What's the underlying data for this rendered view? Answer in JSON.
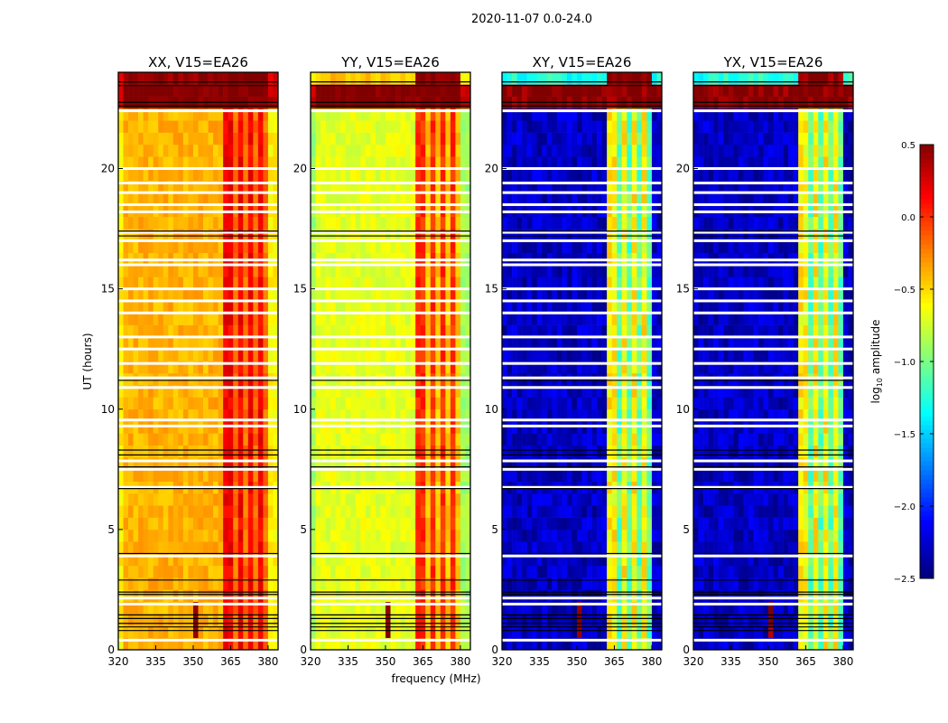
{
  "chart_data": {
    "type": "heatmap",
    "suptitle": "2020-11-07 0.0-24.0",
    "xlabel": "frequency (MHz)",
    "ylabel": "UT (hours)",
    "xlim": [
      320,
      384
    ],
    "ylim": [
      0,
      24
    ],
    "xticks": [
      "320",
      "335",
      "350",
      "365",
      "380"
    ],
    "xtick_values": [
      320,
      335,
      350,
      365,
      380
    ],
    "yticks": [
      "0",
      "5",
      "10",
      "15",
      "20"
    ],
    "ytick_values": [
      0,
      5,
      10,
      15,
      20
    ],
    "colorbar": {
      "label": "log10 amplitude",
      "label_main": "log",
      "label_sub": "10",
      "label_rest": " amplitude",
      "colormap": "jet",
      "range": [
        -2.5,
        0.5
      ],
      "ticks": [
        "0.5",
        "0.0",
        "−0.5",
        "−1.0",
        "−1.5",
        "−2.0",
        "−2.5"
      ],
      "tick_values": [
        0.5,
        0.0,
        -0.5,
        -1.0,
        -1.5,
        -2.0,
        -2.5
      ]
    },
    "rfi_stripes_mhz": [
      [
        362,
        366
      ],
      [
        368,
        370
      ],
      [
        372,
        374
      ],
      [
        376,
        378
      ]
    ],
    "rfi_band_mhz": [
      362,
      380
    ],
    "top_band_hours": [
      22.6,
      24
    ],
    "spike": {
      "freq_mhz": 351,
      "hours": [
        0.6,
        1.9
      ],
      "value": 0.5
    },
    "flagged_hours": [
      0.4,
      1.9,
      2.15,
      3.9,
      6.75,
      7.5,
      7.85,
      9.3,
      9.55,
      10.9,
      11.3,
      11.9,
      12.5,
      13.0,
      14.0,
      14.5,
      15.0,
      16.0,
      16.2,
      17.0,
      17.35,
      18.2,
      18.5,
      19.0,
      19.4,
      20.0,
      22.4
    ],
    "black_line_hours": [
      0.8,
      0.95,
      1.1,
      1.3,
      1.45,
      2.3,
      2.4,
      2.9,
      4.0,
      6.7,
      7.6,
      8.1,
      8.3,
      11.2,
      17.2,
      17.4,
      22.6,
      22.75,
      23.45,
      23.6
    ],
    "panels": [
      {
        "title": "XX, V15=EA26",
        "background": -0.4,
        "rfi": 0.15,
        "rfi_gap": -0.2,
        "top_band": 0.45,
        "center_stripe": 0.5
      },
      {
        "title": "YY, V15=EA26",
        "background": -0.7,
        "rfi": 0.0,
        "rfi_gap": -0.45,
        "top_band": -0.45,
        "center_stripe": 0.5
      },
      {
        "title": "XY, V15=EA26",
        "background": -2.3,
        "rfi": -0.6,
        "rfi_gap": -1.1,
        "top_band": -1.3,
        "center_stripe": 0.5
      },
      {
        "title": "YX, V15=EA26",
        "background": -2.3,
        "rfi": -0.6,
        "rfi_gap": -1.1,
        "top_band": -1.3,
        "center_stripe": 0.5
      }
    ]
  }
}
